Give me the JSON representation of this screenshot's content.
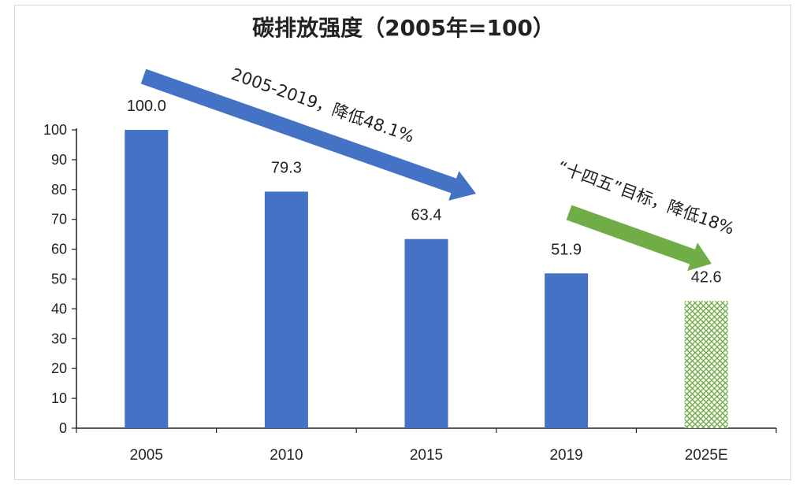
{
  "chart_data": {
    "type": "bar",
    "title": "碳排放强度（2005年=100）",
    "categories": [
      "2005",
      "2010",
      "2015",
      "2019",
      "2025E"
    ],
    "values": [
      100.0,
      79.3,
      63.4,
      51.9,
      42.6
    ],
    "value_labels": [
      "100.0",
      "79.3",
      "63.4",
      "51.9",
      "42.6"
    ],
    "ylim": [
      0,
      100
    ],
    "yticks": [
      0,
      10,
      20,
      30,
      40,
      50,
      60,
      70,
      80,
      90,
      100
    ],
    "grid": false,
    "bar_color": "#4472C4",
    "projected_pattern_color": "#70AD47",
    "annotations": [
      {
        "text": "2005-2019，降低48.1%",
        "arrow_color": "#4472C4",
        "from": "2005",
        "to": "2015"
      },
      {
        "text": "“十四五”目标，降低18%",
        "arrow_color": "#70AD47",
        "from": "2019",
        "to": "2025E"
      }
    ]
  }
}
